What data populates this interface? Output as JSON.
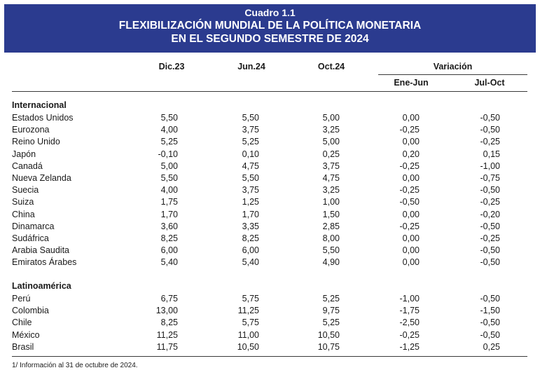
{
  "caption": "Cuadro 1.1",
  "title_line1": "FLEXIBILIZACIÓN MUNDIAL DE LA POLÍTICA MONETARIA",
  "title_line2": "EN EL SEGUNDO SEMESTRE DE 2024",
  "columns": {
    "dic23": "Dic.23",
    "jun24": "Jun.24",
    "oct24": "Oct.24",
    "variacion": "Variación",
    "ene_jun": "Ene-Jun",
    "jul_oct": "Jul-Oct"
  },
  "sections": [
    {
      "name": "Internacional",
      "rows": [
        {
          "country": "Estados Unidos",
          "dic23": "5,50",
          "jun24": "5,50",
          "oct24": "5,00",
          "ene_jun": "0,00",
          "jul_oct": "-0,50"
        },
        {
          "country": "Eurozona",
          "dic23": "4,00",
          "jun24": "3,75",
          "oct24": "3,25",
          "ene_jun": "-0,25",
          "jul_oct": "-0,50"
        },
        {
          "country": "Reino Unido",
          "dic23": "5,25",
          "jun24": "5,25",
          "oct24": "5,00",
          "ene_jun": "0,00",
          "jul_oct": "-0,25"
        },
        {
          "country": "Japón",
          "dic23": "-0,10",
          "jun24": "0,10",
          "oct24": "0,25",
          "ene_jun": "0,20",
          "jul_oct": "0,15"
        },
        {
          "country": "Canadá",
          "dic23": "5,00",
          "jun24": "4,75",
          "oct24": "3,75",
          "ene_jun": "-0,25",
          "jul_oct": "-1,00"
        },
        {
          "country": "Nueva Zelanda",
          "dic23": "5,50",
          "jun24": "5,50",
          "oct24": "4,75",
          "ene_jun": "0,00",
          "jul_oct": "-0,75"
        },
        {
          "country": "Suecia",
          "dic23": "4,00",
          "jun24": "3,75",
          "oct24": "3,25",
          "ene_jun": "-0,25",
          "jul_oct": "-0,50"
        },
        {
          "country": "Suiza",
          "dic23": "1,75",
          "jun24": "1,25",
          "oct24": "1,00",
          "ene_jun": "-0,50",
          "jul_oct": "-0,25"
        },
        {
          "country": "China",
          "dic23": "1,70",
          "jun24": "1,70",
          "oct24": "1,50",
          "ene_jun": "0,00",
          "jul_oct": "-0,20"
        },
        {
          "country": "Dinamarca",
          "dic23": "3,60",
          "jun24": "3,35",
          "oct24": "2,85",
          "ene_jun": "-0,25",
          "jul_oct": "-0,50"
        },
        {
          "country": "Sudáfrica",
          "dic23": "8,25",
          "jun24": "8,25",
          "oct24": "8,00",
          "ene_jun": "0,00",
          "jul_oct": "-0,25"
        },
        {
          "country": "Arabia Saudita",
          "dic23": "6,00",
          "jun24": "6,00",
          "oct24": "5,50",
          "ene_jun": "0,00",
          "jul_oct": "-0,50"
        },
        {
          "country": "Emiratos Árabes",
          "dic23": "5,40",
          "jun24": "5,40",
          "oct24": "4,90",
          "ene_jun": "0,00",
          "jul_oct": "-0,50"
        }
      ]
    },
    {
      "name": "Latinoamérica",
      "rows": [
        {
          "country": "Perú",
          "dic23": "6,75",
          "jun24": "5,75",
          "oct24": "5,25",
          "ene_jun": "-1,00",
          "jul_oct": "-0,50"
        },
        {
          "country": "Colombia",
          "dic23": "13,00",
          "jun24": "11,25",
          "oct24": "9,75",
          "ene_jun": "-1,75",
          "jul_oct": "-1,50"
        },
        {
          "country": "Chile",
          "dic23": "8,25",
          "jun24": "5,75",
          "oct24": "5,25",
          "ene_jun": "-2,50",
          "jul_oct": "-0,50"
        },
        {
          "country": "México",
          "dic23": "11,25",
          "jun24": "11,00",
          "oct24": "10,50",
          "ene_jun": "-0,25",
          "jul_oct": "-0,50"
        },
        {
          "country": "Brasil",
          "dic23": "11,75",
          "jun24": "10,50",
          "oct24": "10,75",
          "ene_jun": "-1,25",
          "jul_oct": "0,25"
        }
      ]
    }
  ],
  "footnote": "1/ Información al 31 de octubre de 2024.",
  "colors": {
    "banner": "#2b3b8f",
    "banner_text": "#ffffff"
  }
}
